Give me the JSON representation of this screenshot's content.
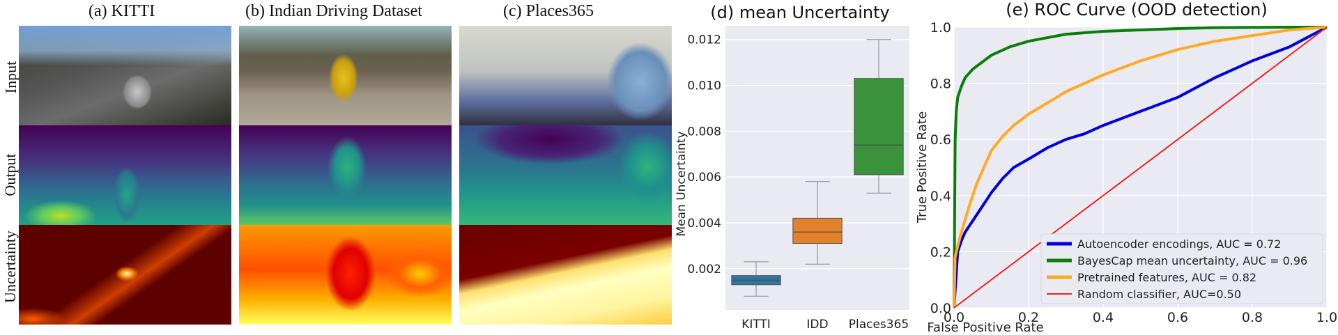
{
  "panels": {
    "a": {
      "title": "(a) KITTI"
    },
    "b": {
      "title": "(b) Indian Driving Dataset"
    },
    "c": {
      "title": "(c) Places365"
    }
  },
  "row_labels": [
    "Input",
    "Output",
    "Uncertainty"
  ],
  "colors": {
    "viridis_dark": "#440154",
    "viridis_mid": "#21918c",
    "viridis_light": "#fde725",
    "hot_dark": "#6b0000",
    "hot_mid": "#e03000",
    "hot_light": "#ffff80"
  },
  "chart_data": [
    {
      "type": "box",
      "title": "(d) mean Uncertainty",
      "xlabel": "",
      "ylabel": "Mean Uncertainty",
      "categories": [
        "KITTI",
        "IDD",
        "Places365"
      ],
      "yticks": [
        "0.002",
        "0.004",
        "0.006",
        "0.008",
        "0.010",
        "0.012"
      ],
      "ylim": [
        0.0002,
        0.0126
      ],
      "grid": true,
      "boxes": [
        {
          "name": "KITTI",
          "whisker_low": 0.0008,
          "q1": 0.0013,
          "median": 0.0015,
          "q3": 0.0017,
          "whisker_high": 0.0023,
          "color": "#3274a1"
        },
        {
          "name": "IDD",
          "whisker_low": 0.0022,
          "q1": 0.0031,
          "median": 0.0036,
          "q3": 0.0042,
          "whisker_high": 0.0058,
          "color": "#e1812c"
        },
        {
          "name": "Places365",
          "whisker_low": 0.0053,
          "q1": 0.0061,
          "median": 0.0074,
          "q3": 0.0103,
          "whisker_high": 0.012,
          "color": "#3a923a"
        }
      ]
    },
    {
      "type": "line",
      "title": "(e) ROC Curve (OOD detection)",
      "xlabel": "False Positive Rate",
      "ylabel": "True Positive Rate",
      "xlim": [
        0,
        1
      ],
      "ylim": [
        0,
        1
      ],
      "xticks": [
        "0.0",
        "0.2",
        "0.4",
        "0.6",
        "0.8",
        "1.0"
      ],
      "yticks": [
        "0.0",
        "0.2",
        "0.4",
        "0.6",
        "0.8",
        "1.0"
      ],
      "grid": true,
      "legend_position": "bottom-right",
      "series": [
        {
          "name": "Autoencoder encodings, AUC = 0.72",
          "color": "#0000dd",
          "x": [
            0,
            0.01,
            0.02,
            0.03,
            0.05,
            0.07,
            0.1,
            0.13,
            0.16,
            0.2,
            0.25,
            0.3,
            0.35,
            0.4,
            0.5,
            0.6,
            0.7,
            0.8,
            0.9,
            1.0
          ],
          "y": [
            0,
            0.2,
            0.24,
            0.27,
            0.31,
            0.35,
            0.41,
            0.46,
            0.5,
            0.53,
            0.57,
            0.6,
            0.62,
            0.65,
            0.7,
            0.75,
            0.82,
            0.88,
            0.93,
            1.0
          ]
        },
        {
          "name": "BayesCap mean uncertainty, AUC = 0.96",
          "color": "#0a7d0a",
          "x": [
            0,
            0.003,
            0.006,
            0.01,
            0.02,
            0.03,
            0.05,
            0.07,
            0.1,
            0.15,
            0.2,
            0.3,
            0.4,
            0.5,
            0.6,
            0.7,
            0.8,
            0.9,
            1.0
          ],
          "y": [
            0,
            0.6,
            0.7,
            0.75,
            0.79,
            0.82,
            0.85,
            0.87,
            0.9,
            0.93,
            0.95,
            0.975,
            0.985,
            0.99,
            0.995,
            0.998,
            0.999,
            1.0,
            1.0
          ]
        },
        {
          "name": "Pretrained features, AUC = 0.82",
          "color": "#ffaa22",
          "x": [
            0,
            0.003,
            0.01,
            0.02,
            0.04,
            0.06,
            0.08,
            0.1,
            0.13,
            0.16,
            0.2,
            0.25,
            0.3,
            0.4,
            0.5,
            0.6,
            0.7,
            0.8,
            0.9,
            1.0
          ],
          "y": [
            0,
            0.18,
            0.22,
            0.27,
            0.36,
            0.44,
            0.5,
            0.56,
            0.61,
            0.65,
            0.69,
            0.73,
            0.77,
            0.83,
            0.88,
            0.92,
            0.95,
            0.97,
            0.99,
            1.0
          ]
        },
        {
          "name": "Random classifier, AUC=0.50",
          "color": "#ee2222",
          "x": [
            0,
            1
          ],
          "y": [
            0,
            1
          ]
        }
      ]
    }
  ]
}
